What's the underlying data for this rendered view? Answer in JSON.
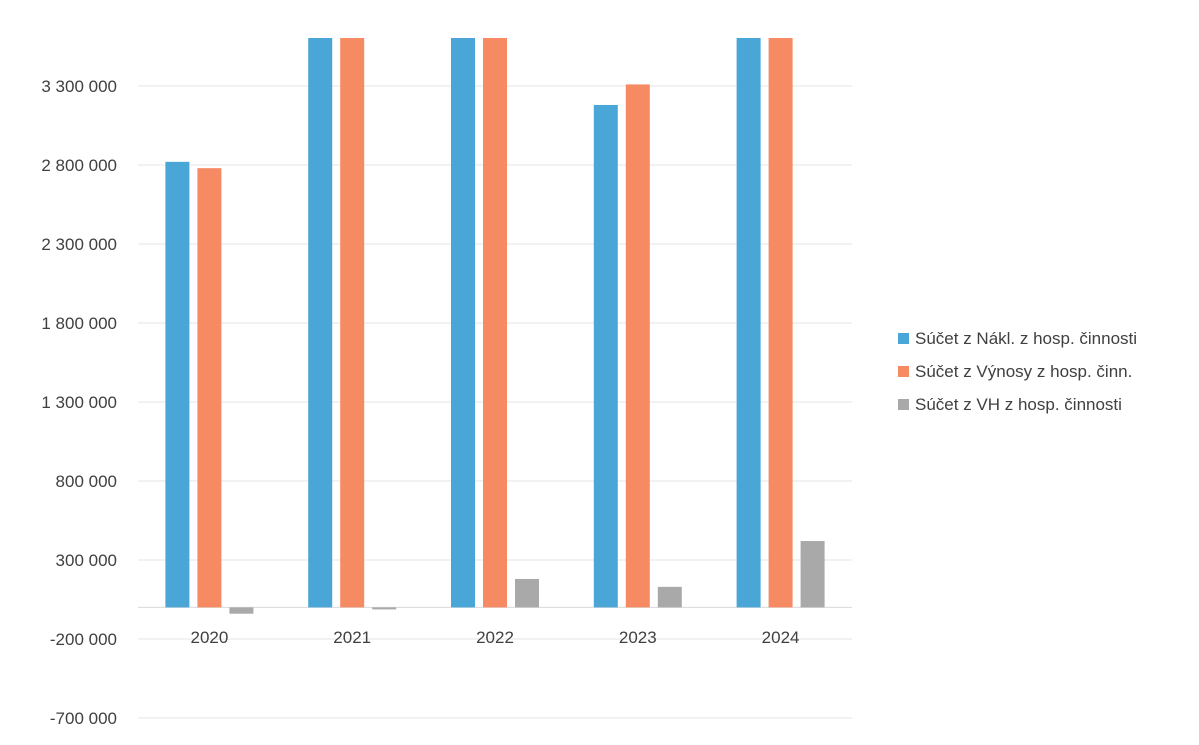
{
  "chart_data": {
    "type": "bar",
    "title": "",
    "xlabel": "",
    "ylabel": "",
    "categories": [
      "2020",
      "2021",
      "2022",
      "2023",
      "2024"
    ],
    "series": [
      {
        "name": "Súčet z Nákl. z hosp. činnosti",
        "color": "#4aa6d6",
        "values": [
          2820000,
          3700000,
          3700000,
          3180000,
          3700000
        ]
      },
      {
        "name": "Súčet z Výnosy z hosp. činn.",
        "color": "#f58a63",
        "values": [
          2780000,
          3700000,
          3700000,
          3310000,
          3700000
        ]
      },
      {
        "name": "Súčet z VH z hosp. činnosti",
        "color": "#a9a9a9",
        "values": [
          -40000,
          -10000,
          180000,
          130000,
          420000
        ]
      }
    ],
    "y_ticks": [
      3300000,
      2800000,
      2300000,
      1800000,
      1300000,
      800000,
      300000,
      -200000,
      -700000
    ],
    "y_tick_labels": [
      "3 300 000",
      "2 800 000",
      "2 300 000",
      "1 800 000",
      "1 300 000",
      "800 000",
      "300 000",
      "-200 000",
      "-700 000"
    ],
    "ylim": [
      -700000,
      3700000
    ],
    "grid": true,
    "legend_position": "right"
  }
}
